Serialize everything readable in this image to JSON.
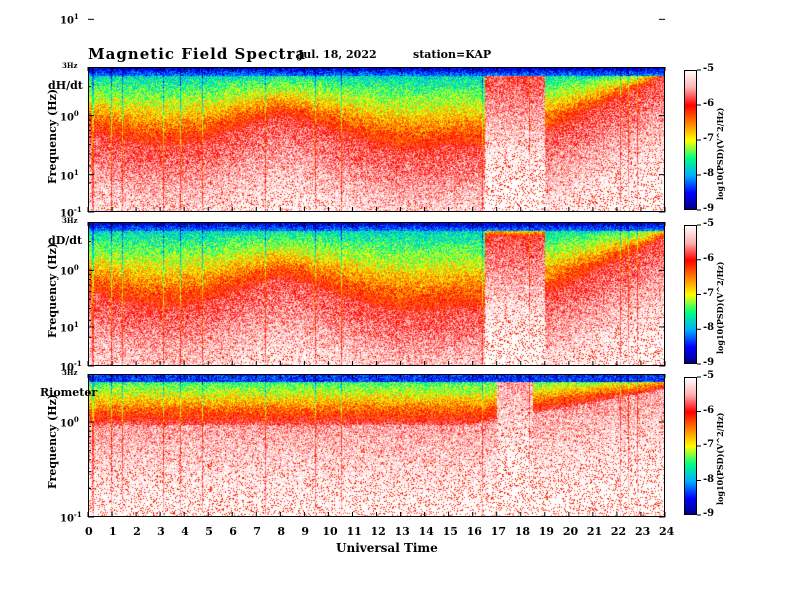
{
  "header": {
    "title": "Magnetic  Field  Spectra",
    "date": "Jul.  18, 2022",
    "station": "station=KAP"
  },
  "colors": {
    "spectrum_stops": [
      "#000080",
      "#0000ff",
      "#00b0ff",
      "#00ff80",
      "#ffff00",
      "#ff8000",
      "#ff0000",
      "#ffb0b0",
      "#ffffff"
    ],
    "axis": "#000000"
  },
  "chart_data": [
    {
      "type": "heatmap",
      "panel_label": "dH/dt",
      "ylabel": "Frequency  (Hz)",
      "ytick_labels": [
        "10",
        "10",
        "10"
      ],
      "ytick_exponents": [
        "-1",
        "0",
        "1"
      ],
      "ytop_label": "3Hz",
      "yscale": "log",
      "ylim": [
        0.1,
        3.2
      ],
      "xlim": [
        0,
        24
      ],
      "colorbar_label": "log10(PSD)(V^2/Hz)",
      "colorbar_range": [
        -9,
        -5
      ],
      "colorbar_ticks": [
        "-5",
        "-6",
        "-7",
        "-8",
        "-9"
      ]
    },
    {
      "type": "heatmap",
      "panel_label": "dD/dt",
      "ylabel": "Frequency  (Hz)",
      "ytick_labels": [
        "10",
        "10",
        "10"
      ],
      "ytick_exponents": [
        "-1",
        "0",
        "1"
      ],
      "ytop_label": "3Hz",
      "yscale": "log",
      "ylim": [
        0.1,
        3.2
      ],
      "xlim": [
        0,
        24
      ],
      "colorbar_label": "log10(PSD)(V^2/Hz)",
      "colorbar_range": [
        -9,
        -5
      ],
      "colorbar_ticks": [
        "-5",
        "-6",
        "-7",
        "-8",
        "-9"
      ]
    },
    {
      "type": "heatmap",
      "panel_label": "Riometer",
      "ylabel": "Frequency  (Hz)",
      "ytick_labels": [
        "10",
        "10",
        "10"
      ],
      "ytick_exponents": [
        "-1",
        "0",
        "1"
      ],
      "ytop_label": "3Hz",
      "yscale": "log",
      "ylim": [
        0.1,
        3.2
      ],
      "xlim": [
        0,
        24
      ],
      "colorbar_label": "log10(PSD)(V^2/Hz)",
      "colorbar_range": [
        -9,
        -5
      ],
      "colorbar_ticks": [
        "-5",
        "-6",
        "-7",
        "-8",
        "-9"
      ]
    }
  ],
  "xaxis": {
    "label": "Universal  Time",
    "ticks": [
      "0",
      "1",
      "2",
      "3",
      "4",
      "5",
      "6",
      "7",
      "8",
      "9",
      "10",
      "11",
      "12",
      "13",
      "14",
      "15",
      "16",
      "17",
      "18",
      "19",
      "20",
      "21",
      "22",
      "23",
      "24"
    ]
  }
}
